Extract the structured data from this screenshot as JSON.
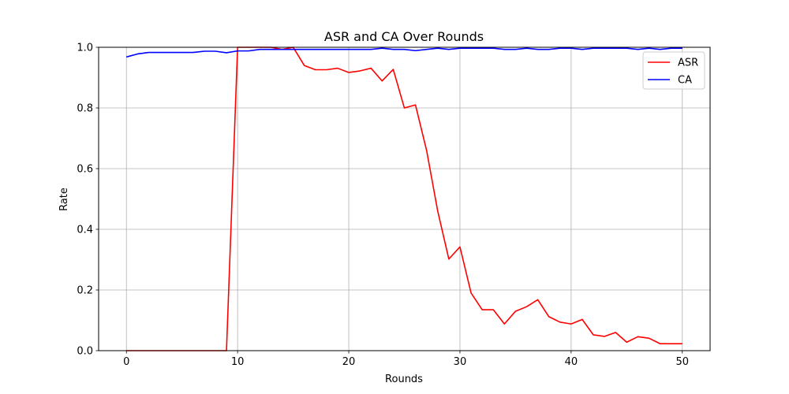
{
  "chart_data": {
    "type": "line",
    "title": "ASR and CA Over Rounds",
    "xlabel": "Rounds",
    "ylabel": "Rate",
    "xlim": [
      -2.5,
      52.5
    ],
    "ylim": [
      0,
      1.0
    ],
    "xticks": [
      0,
      10,
      20,
      30,
      40,
      50
    ],
    "xtick_labels": [
      "0",
      "10",
      "20",
      "30",
      "40",
      "50"
    ],
    "yticks": [
      0.0,
      0.2,
      0.4,
      0.6,
      0.8,
      1.0
    ],
    "ytick_labels": [
      "0.0",
      "0.2",
      "0.4",
      "0.6",
      "0.8",
      "1.0"
    ],
    "grid": true,
    "legend_position": "upper right",
    "x": [
      0,
      1,
      2,
      3,
      4,
      5,
      6,
      7,
      8,
      9,
      10,
      11,
      12,
      13,
      14,
      15,
      16,
      17,
      18,
      19,
      20,
      21,
      22,
      23,
      24,
      25,
      26,
      27,
      28,
      29,
      30,
      31,
      32,
      33,
      34,
      35,
      36,
      37,
      38,
      39,
      40,
      41,
      42,
      43,
      44,
      45,
      46,
      47,
      48,
      49,
      50
    ],
    "series": [
      {
        "name": "ASR",
        "color": "#ff0000",
        "values": [
          0,
          0,
          0,
          0,
          0,
          0,
          0,
          0,
          0,
          0,
          1.0,
          1.0,
          1.0,
          1.0,
          0.993,
          1.0,
          0.94,
          0.926,
          0.926,
          0.931,
          0.917,
          0.922,
          0.931,
          0.889,
          0.927,
          0.8,
          0.81,
          0.66,
          0.46,
          0.302,
          0.342,
          0.19,
          0.135,
          0.135,
          0.088,
          0.13,
          0.145,
          0.168,
          0.112,
          0.094,
          0.088,
          0.103,
          0.052,
          0.047,
          0.06,
          0.028,
          0.046,
          0.041,
          0.023,
          0.023,
          0.023
        ]
      },
      {
        "name": "CA",
        "color": "#0000ff",
        "values": [
          0.968,
          0.978,
          0.983,
          0.983,
          0.983,
          0.983,
          0.983,
          0.987,
          0.987,
          0.982,
          0.988,
          0.988,
          0.993,
          0.993,
          0.993,
          0.993,
          0.993,
          0.993,
          0.993,
          0.993,
          0.993,
          0.993,
          0.993,
          0.997,
          0.993,
          0.993,
          0.989,
          0.993,
          0.997,
          0.993,
          0.997,
          0.997,
          0.997,
          0.997,
          0.993,
          0.993,
          0.997,
          0.993,
          0.993,
          0.997,
          0.997,
          0.993,
          0.997,
          0.997,
          0.997,
          0.997,
          0.993,
          0.997,
          0.993,
          0.997,
          0.997
        ]
      }
    ]
  }
}
